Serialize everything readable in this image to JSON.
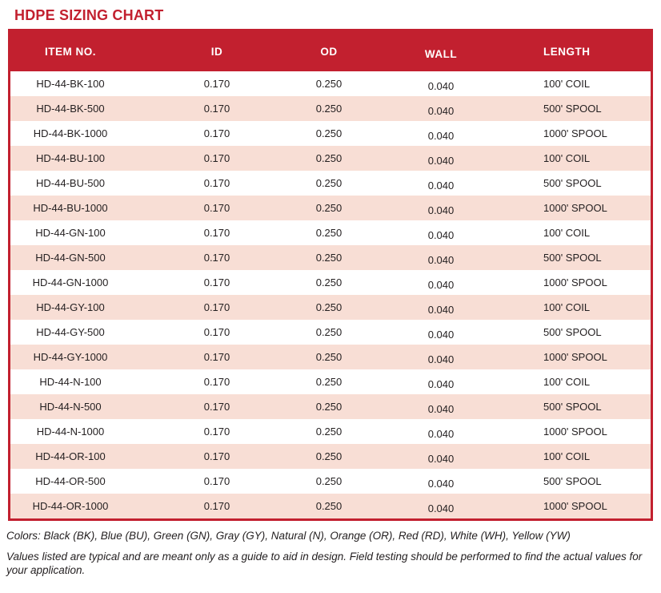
{
  "page": {
    "title": "HDPE SIZING CHART"
  },
  "table": {
    "columns": [
      "ITEM NO.",
      "ID",
      "OD",
      "WALL",
      "LENGTH"
    ],
    "rows": [
      [
        "HD-44-BK-100",
        "0.170",
        "0.250",
        "0.040",
        "100' COIL"
      ],
      [
        "HD-44-BK-500",
        "0.170",
        "0.250",
        "0.040",
        "500' SPOOL"
      ],
      [
        "HD-44-BK-1000",
        "0.170",
        "0.250",
        "0.040",
        "1000' SPOOL"
      ],
      [
        "HD-44-BU-100",
        "0.170",
        "0.250",
        "0.040",
        "100' COIL"
      ],
      [
        "HD-44-BU-500",
        "0.170",
        "0.250",
        "0.040",
        "500' SPOOL"
      ],
      [
        "HD-44-BU-1000",
        "0.170",
        "0.250",
        "0.040",
        "1000' SPOOL"
      ],
      [
        "HD-44-GN-100",
        "0.170",
        "0.250",
        "0.040",
        "100' COIL"
      ],
      [
        "HD-44-GN-500",
        "0.170",
        "0.250",
        "0.040",
        "500' SPOOL"
      ],
      [
        "HD-44-GN-1000",
        "0.170",
        "0.250",
        "0.040",
        "1000' SPOOL"
      ],
      [
        "HD-44-GY-100",
        "0.170",
        "0.250",
        "0.040",
        "100' COIL"
      ],
      [
        "HD-44-GY-500",
        "0.170",
        "0.250",
        "0.040",
        "500' SPOOL"
      ],
      [
        "HD-44-GY-1000",
        "0.170",
        "0.250",
        "0.040",
        "1000' SPOOL"
      ],
      [
        "HD-44-N-100",
        "0.170",
        "0.250",
        "0.040",
        "100' COIL"
      ],
      [
        "HD-44-N-500",
        "0.170",
        "0.250",
        "0.040",
        "500' SPOOL"
      ],
      [
        "HD-44-N-1000",
        "0.170",
        "0.250",
        "0.040",
        "1000' SPOOL"
      ],
      [
        "HD-44-OR-100",
        "0.170",
        "0.250",
        "0.040",
        "100' COIL"
      ],
      [
        "HD-44-OR-500",
        "0.170",
        "0.250",
        "0.040",
        "500' SPOOL"
      ],
      [
        "HD-44-OR-1000",
        "0.170",
        "0.250",
        "0.040",
        "1000' SPOOL"
      ]
    ]
  },
  "notes": {
    "colors": "Colors: Black (BK), Blue (BU), Green (GN), Gray (GY), Natural (N), Orange (OR), Red (RD), White (WH), Yellow (YW)",
    "disclaimer": "Values listed are typical and are meant only as a guide to aid in design. Field testing should be performed to find the actual values for your application."
  },
  "colors": {
    "accent_red": "#C2202F",
    "row_pink": "#F8DED5",
    "header_text": "#FFFFFF",
    "body_text": "#231F20"
  }
}
